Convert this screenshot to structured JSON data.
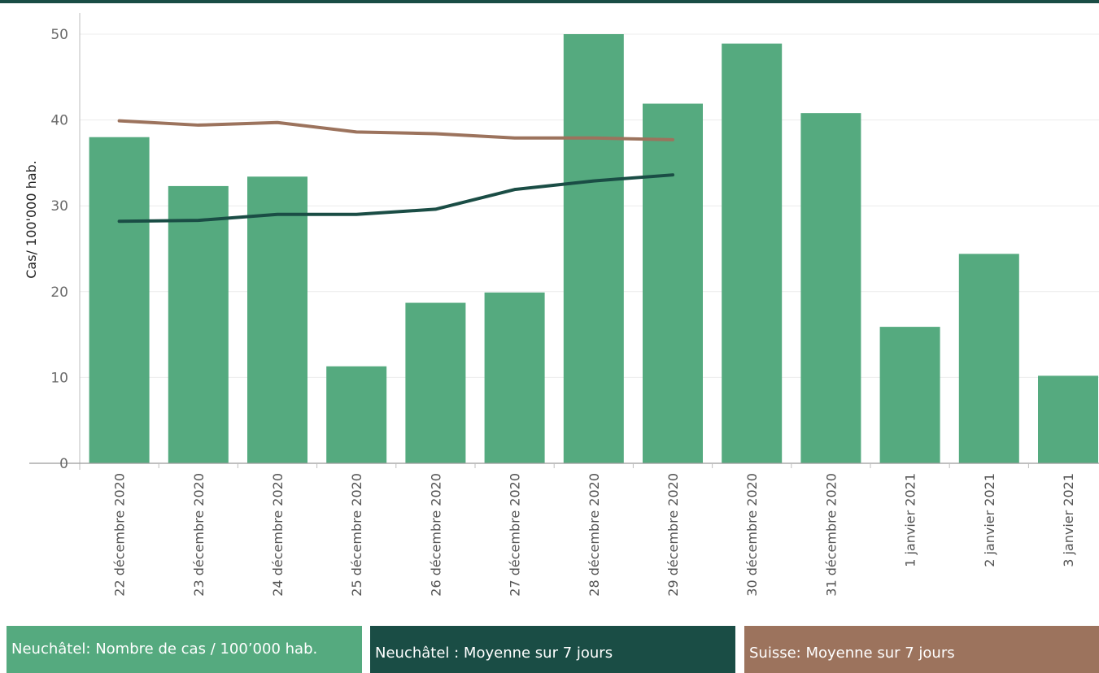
{
  "colors": {
    "bars": "#55aa7f",
    "neuchatel_avg": "#1a4d45",
    "suisse_avg": "#9c735d",
    "grid": "#ececec",
    "axis": "#bdbdbd"
  },
  "chart_data": {
    "type": "bar",
    "ylabel": "Cas/ 100'000 hab.",
    "ylim": [
      0,
      52
    ],
    "yticks": [
      0,
      10,
      20,
      30,
      40,
      50
    ],
    "grid": true,
    "categories": [
      "22 décembre 2020",
      "23 décembre 2020",
      "24 décembre 2020",
      "25 décembre 2020",
      "26 décembre 2020",
      "27 décembre 2020",
      "28 décembre 2020",
      "29 décembre 2020",
      "30 décembre 2020",
      "31 décembre 2020",
      "1 janvier 2021",
      "2 janvier 2021",
      "3 janvier 2021"
    ],
    "series": [
      {
        "name": "Neuchâtel: Nombre de cas / 100'000 hab.",
        "kind": "bar",
        "values": [
          38.0,
          32.3,
          33.4,
          11.3,
          18.7,
          19.9,
          50.0,
          41.9,
          48.9,
          40.8,
          15.9,
          24.4,
          10.2
        ]
      },
      {
        "name": "Neuchâtel : Moyenne sur 7 jours",
        "kind": "line",
        "values": [
          28.2,
          28.3,
          29.0,
          29.0,
          29.6,
          31.9,
          32.9,
          33.6,
          null,
          null,
          null,
          null,
          null
        ]
      },
      {
        "name": "Suisse: Moyenne sur 7 jours",
        "kind": "line",
        "values": [
          39.9,
          39.4,
          39.7,
          38.6,
          38.4,
          37.9,
          37.9,
          37.7,
          null,
          null,
          null,
          null,
          null
        ]
      }
    ]
  },
  "legend": {
    "bars_label": "Neuchâtel: Nombre de cas / 100’000 hab.",
    "neuchatel_avg_label": "Neuchâtel : Moyenne sur 7 jours",
    "suisse_avg_label": "Suisse: Moyenne sur 7 jours"
  }
}
